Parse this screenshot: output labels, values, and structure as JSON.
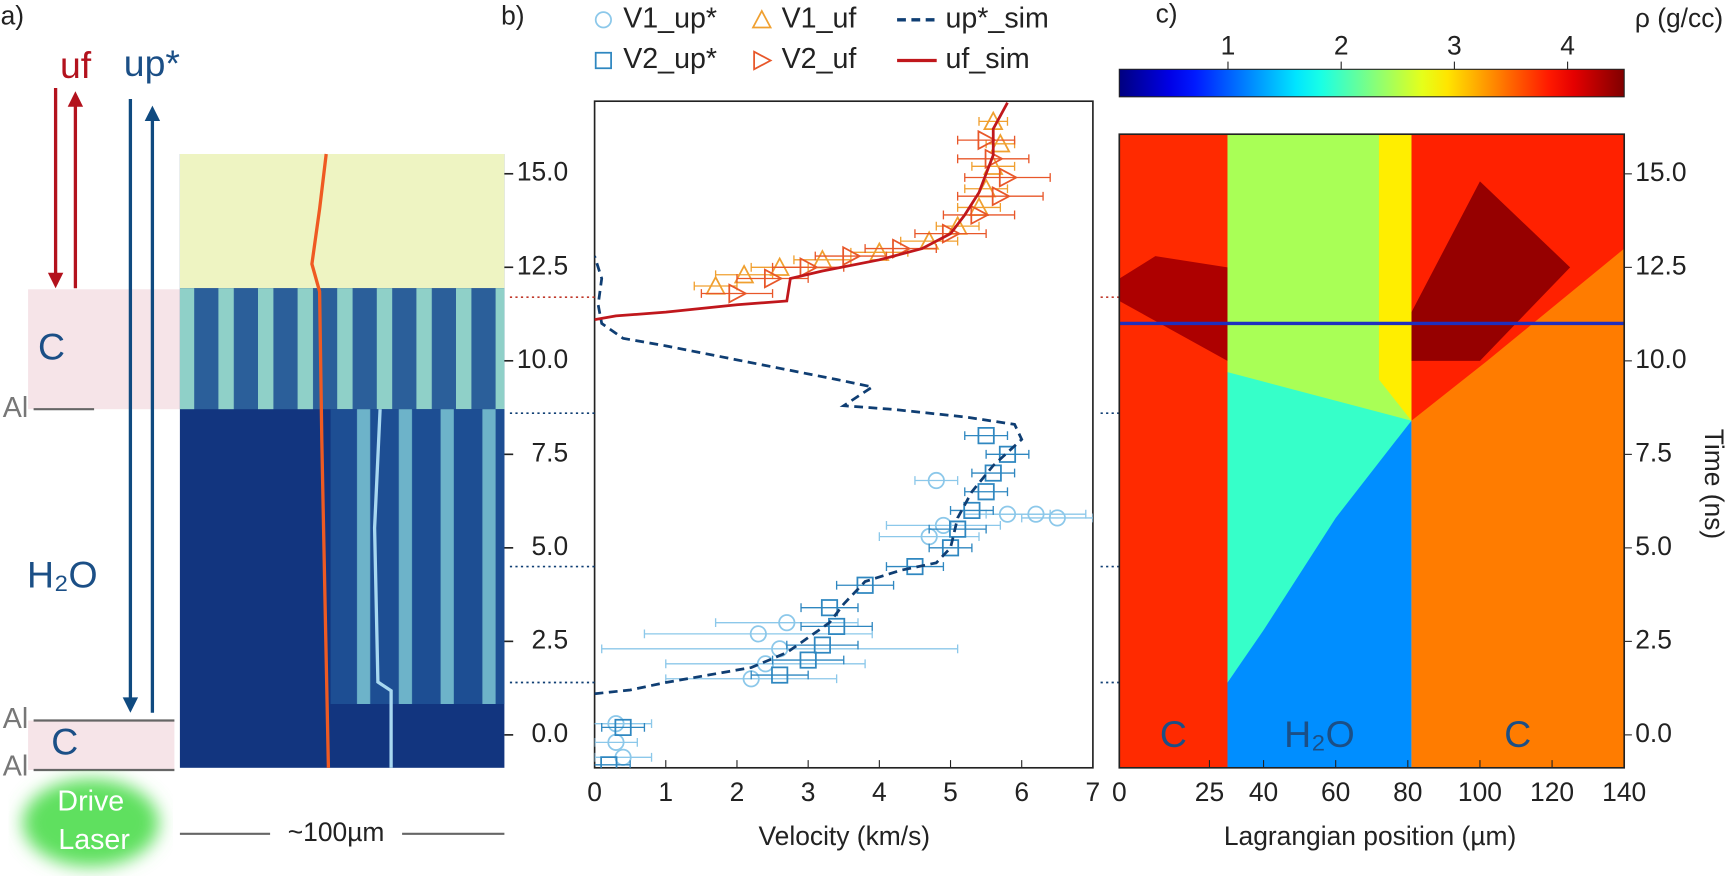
{
  "panel_a": {
    "label": "a)",
    "arrows": [
      "uf",
      "up*"
    ],
    "layers": [
      "C",
      "Al",
      "H₂O",
      "Al",
      "C",
      "Al"
    ],
    "laser": [
      "Drive",
      "Laser"
    ],
    "scale_bar": "~100µm"
  },
  "chart_data": [
    {
      "type": "line",
      "panel_label": "b)",
      "xlabel": "Velocity (km/s)",
      "xlim": [
        0,
        7
      ],
      "xticks": [
        0,
        1,
        2,
        3,
        4,
        5,
        6,
        7
      ],
      "ylim": [
        -0.88,
        16.94
      ],
      "yticks": [
        {
          "value": 15,
          "label": "15.0"
        },
        {
          "value": 12.5,
          "label": "12.5"
        },
        {
          "value": 10,
          "label": "10.0"
        },
        {
          "value": 7.5,
          "label": "7.5"
        },
        {
          "value": 5,
          "label": "5.0"
        },
        {
          "value": 2.5,
          "label": "2.5"
        },
        {
          "value": 0,
          "label": "0.0"
        }
      ],
      "series": [
        {
          "name": "V1_up*",
          "marker": "circle",
          "color": "#8cc8ea",
          "x": [
            0.4,
            0.3,
            2.2,
            2.4,
            2.6,
            2.3,
            2.7,
            4.7,
            4.9,
            5.8,
            6.2,
            6.5,
            4.8,
            0.3
          ],
          "y": [
            -0.6,
            0.3,
            1.5,
            1.9,
            2.3,
            2.7,
            3.0,
            5.3,
            5.6,
            5.9,
            5.9,
            5.8,
            6.8,
            -0.2
          ],
          "xerr": [
            0.4,
            0.5,
            1.2,
            1.4,
            2.5,
            1.6,
            1.0,
            0.7,
            0.8,
            0.6,
            0.7,
            0.5,
            0.3,
            0.3
          ]
        },
        {
          "name": "V2_up*",
          "marker": "square",
          "color": "#2f87c0",
          "x": [
            0.2,
            0.4,
            2.6,
            3.0,
            3.2,
            3.4,
            3.3,
            3.8,
            4.5,
            5.0,
            5.1,
            5.3,
            5.5,
            5.6,
            5.8,
            5.5
          ],
          "y": [
            -0.8,
            0.2,
            1.6,
            2.0,
            2.4,
            2.9,
            3.4,
            4.0,
            4.5,
            5.0,
            5.5,
            6.0,
            6.5,
            7.0,
            7.5,
            8.0
          ],
          "xerr": [
            0.3,
            0.3,
            0.4,
            0.5,
            0.5,
            0.5,
            0.4,
            0.4,
            0.4,
            0.3,
            0.4,
            0.3,
            0.3,
            0.3,
            0.3,
            0.3
          ]
        },
        {
          "name": "V1_uf",
          "marker": "triangle-up",
          "color": "#f0a030",
          "x": [
            1.7,
            2.1,
            2.6,
            3.2,
            4.0,
            4.7,
            5.1,
            5.4,
            5.5,
            5.6,
            5.7,
            5.6
          ],
          "y": [
            12.0,
            12.3,
            12.5,
            12.7,
            12.9,
            13.2,
            13.6,
            14.1,
            14.6,
            15.2,
            15.8,
            16.4
          ],
          "xerr": [
            0.3,
            0.4,
            0.4,
            0.4,
            0.4,
            0.4,
            0.3,
            0.3,
            0.3,
            0.3,
            0.2,
            0.2
          ]
        },
        {
          "name": "V2_uf",
          "marker": "triangle-right",
          "color": "#e8572a",
          "x": [
            2.0,
            2.5,
            3.0,
            3.6,
            4.3,
            5.0,
            5.4,
            5.7,
            5.8,
            5.6,
            5.5
          ],
          "y": [
            11.8,
            12.2,
            12.5,
            12.8,
            13.0,
            13.4,
            13.9,
            14.4,
            14.9,
            15.4,
            15.9
          ],
          "xerr": [
            0.5,
            0.5,
            0.5,
            0.5,
            0.5,
            0.5,
            0.5,
            0.6,
            0.6,
            0.5,
            0.4
          ]
        },
        {
          "name": "up*_sim",
          "marker": "line",
          "dash": true,
          "color": "#0f3e73",
          "x": [
            0,
            0.5,
            1.0,
            1.6,
            2.2,
            2.7,
            3.0,
            3.3,
            3.5,
            3.8,
            4.3,
            4.8,
            5.0,
            5.1,
            5.3,
            5.6,
            6.0,
            5.9,
            5.2,
            4.2,
            3.5,
            3.9,
            3.4,
            2.6,
            1.8,
            1.0,
            0.4,
            0.1,
            0.05,
            0.1,
            0
          ],
          "y": [
            1.1,
            1.2,
            1.4,
            1.6,
            1.8,
            2.2,
            2.6,
            3.0,
            3.5,
            4.1,
            4.4,
            4.6,
            5.0,
            5.8,
            6.5,
            7.2,
            7.9,
            8.3,
            8.5,
            8.7,
            8.8,
            9.3,
            9.5,
            9.8,
            10.1,
            10.4,
            10.6,
            11.0,
            11.5,
            12.2,
            12.8
          ]
        },
        {
          "name": "uf_sim",
          "marker": "line",
          "dash": false,
          "color": "#c0171c",
          "x": [
            0,
            0.3,
            1.0,
            2.0,
            2.7,
            2.75,
            3.2,
            4.0,
            4.6,
            5.0,
            5.2,
            5.4,
            5.5,
            5.6,
            5.6,
            5.8
          ],
          "y": [
            11.1,
            11.2,
            11.3,
            11.5,
            11.6,
            12.2,
            12.4,
            12.7,
            13.0,
            13.4,
            13.9,
            14.5,
            15.0,
            15.5,
            16.2,
            16.9
          ]
        }
      ],
      "reference_lines": [
        {
          "y": 11.7,
          "color": "#c0392b"
        },
        {
          "y": 8.6,
          "color": "#0f3e73"
        },
        {
          "y": 4.5,
          "color": "#0f3e73"
        },
        {
          "y": 1.4,
          "color": "#0f3e73"
        }
      ]
    },
    {
      "type": "heatmap",
      "panel_label": "c)",
      "xlabel": "Lagrangian position (µm)",
      "ylabel": "Time (ns)",
      "xlim": [
        0,
        140
      ],
      "xticks": [
        0,
        25,
        40,
        60,
        80,
        100,
        120,
        140
      ],
      "ylim": [
        -0.88,
        16.06
      ],
      "yticks": [
        {
          "value": 15,
          "label": "15.0"
        },
        {
          "value": 12.5,
          "label": "12.5"
        },
        {
          "value": 10,
          "label": "10.0"
        },
        {
          "value": 7.5,
          "label": "7.5"
        },
        {
          "value": 5,
          "label": "5.0"
        },
        {
          "value": 2.5,
          "label": "2.5"
        },
        {
          "value": 0,
          "label": "0.0"
        }
      ],
      "colorbar": {
        "label": "ρ (g/cc)",
        "lim": [
          0.04,
          4.5
        ],
        "ticks": [
          1,
          2,
          3,
          4
        ]
      },
      "boundaries": [
        30,
        81
      ],
      "region_labels": [
        "C",
        "H₂O",
        "C"
      ],
      "polygons": [
        {
          "density": 3.76,
          "points": [
            [
              0,
              -0.88
            ],
            [
              30,
              -0.88
            ],
            [
              30,
              16.06
            ],
            [
              0,
              16.06
            ]
          ]
        },
        {
          "density": 4.3,
          "points": [
            [
              0,
              11.6
            ],
            [
              30,
              10.0
            ],
            [
              30,
              12.5
            ],
            [
              10,
              12.8
            ],
            [
              0,
              12.2
            ]
          ]
        },
        {
          "density": 3.4,
          "points": [
            [
              81,
              -0.88
            ],
            [
              140,
              -0.88
            ],
            [
              140,
              16.06
            ],
            [
              81,
              16.06
            ]
          ]
        },
        {
          "density": 3.8,
          "points": [
            [
              81,
              8.4
            ],
            [
              102,
              10.0
            ],
            [
              140,
              13
            ],
            [
              140,
              16.06
            ],
            [
              81,
              16.06
            ]
          ]
        },
        {
          "density": 4.4,
          "points": [
            [
              81,
              10.0
            ],
            [
              81,
              11.3
            ],
            [
              100,
              14.8
            ],
            [
              125,
              12.5
            ],
            [
              100,
              10.0
            ]
          ]
        },
        {
          "density": 1.95,
          "points": [
            [
              30,
              1.4
            ],
            [
              81,
              8.4
            ],
            [
              81,
              16.06
            ],
            [
              30,
              16.06
            ]
          ]
        },
        {
          "density": 2.45,
          "points": [
            [
              30,
              9.7
            ],
            [
              81,
              8.4
            ],
            [
              81,
              16.06
            ],
            [
              30,
              16.06
            ]
          ]
        },
        {
          "density": 2.9,
          "points": [
            [
              72,
              9.5
            ],
            [
              81,
              8.4
            ],
            [
              81,
              16.06
            ],
            [
              72,
              16.06
            ]
          ]
        },
        {
          "density": 1.22,
          "points": [
            [
              30,
              -0.88
            ],
            [
              81,
              -0.88
            ],
            [
              81,
              8.4
            ],
            [
              60,
              5.8
            ],
            [
              40,
              2.8
            ],
            [
              30,
              1.4
            ]
          ]
        }
      ],
      "marker_line": {
        "y": 11.0,
        "color": "#1f2fbf"
      }
    }
  ]
}
